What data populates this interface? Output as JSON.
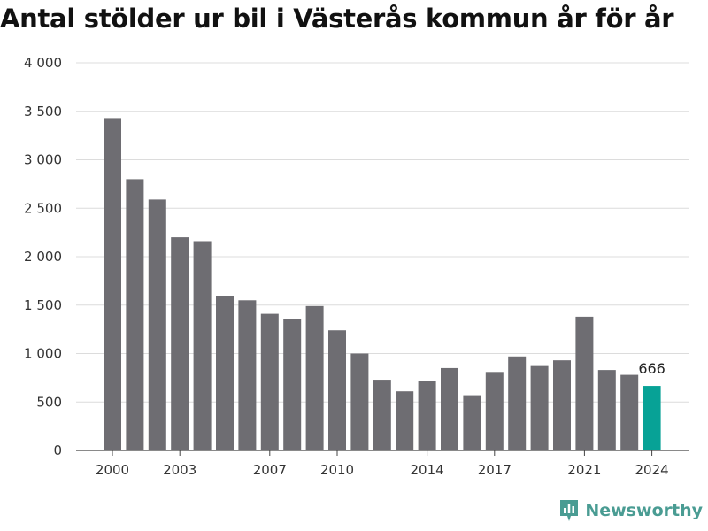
{
  "title": "Antal stölder ur bil i Västerås kommun år för år",
  "brand": {
    "name": "Newsworthy",
    "icon": "newsworthy-logo-icon",
    "color": "#4a9c93"
  },
  "colors": {
    "bar": "#6e6d72",
    "highlight": "#07a296",
    "grid": "#dcdcdc",
    "axis": "#444444"
  },
  "chart_data": {
    "type": "bar",
    "title": "Antal stölder ur bil i Västerås kommun år för år",
    "xlabel": "",
    "ylabel": "",
    "categories": [
      "2000",
      "2001",
      "2002",
      "2003",
      "2004",
      "2005",
      "2006",
      "2007",
      "2008",
      "2009",
      "2010",
      "2011",
      "2012",
      "2013",
      "2014",
      "2015",
      "2016",
      "2017",
      "2018",
      "2019",
      "2020",
      "2021",
      "2022",
      "2023",
      "2024"
    ],
    "values": [
      3430,
      2800,
      2590,
      2200,
      2160,
      1590,
      1550,
      1410,
      1360,
      1490,
      1240,
      1000,
      730,
      610,
      720,
      850,
      570,
      810,
      970,
      880,
      930,
      1380,
      830,
      780,
      666
    ],
    "x_tick_labels": [
      "2000",
      "2003",
      "2007",
      "2010",
      "2014",
      "2017",
      "2021",
      "2024"
    ],
    "y_ticks": [
      0,
      500,
      1000,
      1500,
      2000,
      2500,
      3000,
      3500,
      4000
    ],
    "y_tick_labels": [
      "0",
      "500",
      "1 000",
      "1 500",
      "2 000",
      "2 500",
      "3 000",
      "3 500",
      "4 000"
    ],
    "ylim": [
      0,
      4000
    ],
    "grid": true,
    "legend": "none",
    "highlight_category": "2024",
    "data_labels": [
      {
        "category": "2024",
        "text": "666"
      }
    ]
  }
}
